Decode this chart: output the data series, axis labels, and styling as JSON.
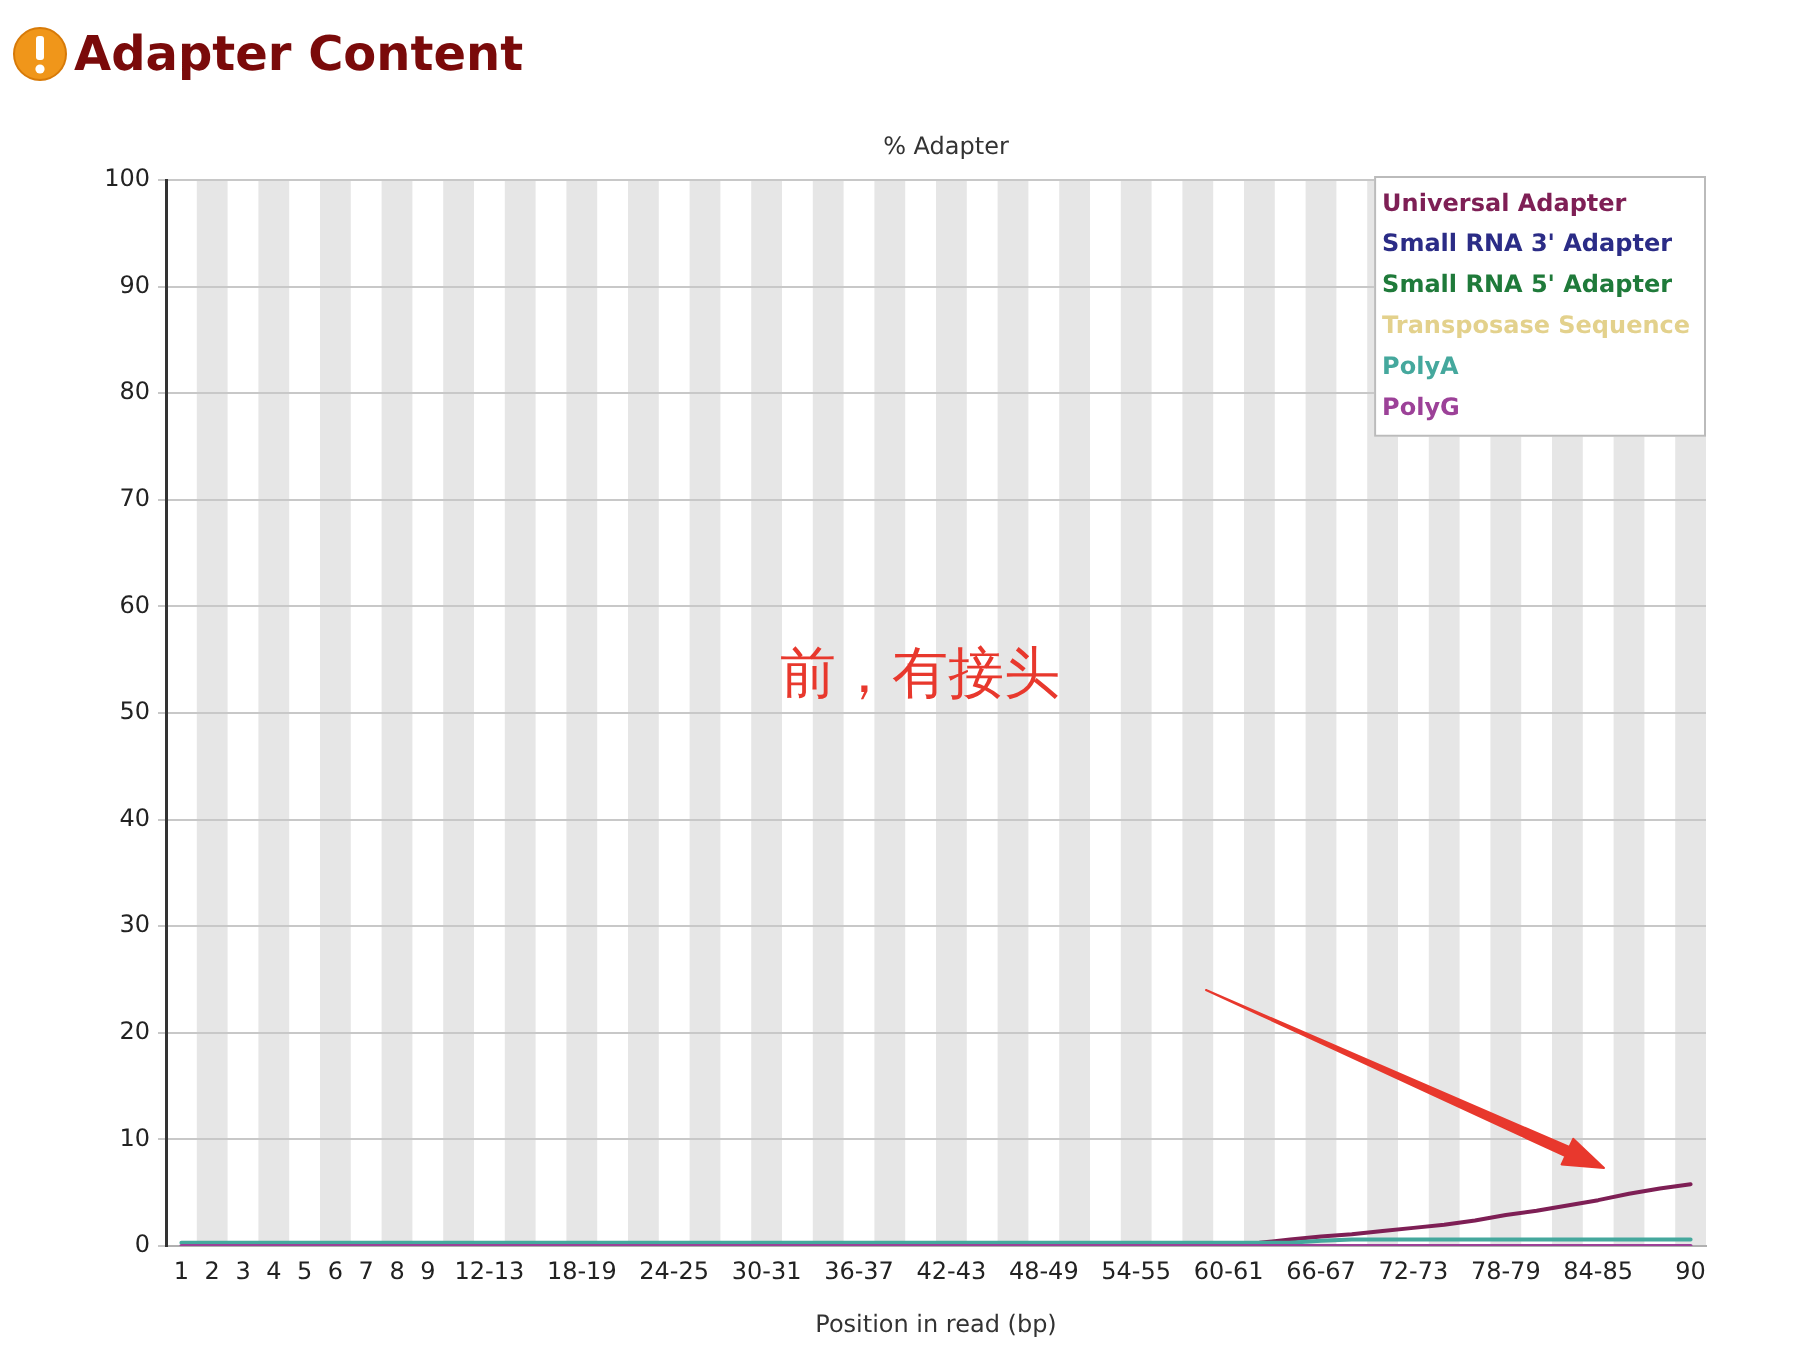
{
  "chart_data": {
    "type": "line",
    "title": "Adapter Content",
    "subtitle": "% Adapter",
    "xlabel": "Position in read (bp)",
    "categories": [
      "1",
      "2",
      "3",
      "4",
      "5",
      "6",
      "7",
      "8",
      "9",
      null,
      "12-13",
      null,
      null,
      "18-19",
      null,
      null,
      "24-25",
      null,
      null,
      "30-31",
      null,
      null,
      "36-37",
      null,
      null,
      "42-43",
      null,
      null,
      "48-49",
      null,
      null,
      "54-55",
      null,
      null,
      "60-61",
      null,
      null,
      "66-67",
      null,
      null,
      "72-73",
      null,
      null,
      "78-79",
      null,
      null,
      "84-85",
      null,
      null,
      "90"
    ],
    "series": [
      {
        "name": "Universal Adapter",
        "color": "#7e1f55",
        "values": [
          null,
          null,
          null,
          null,
          null,
          null,
          null,
          null,
          null,
          null,
          null,
          null,
          null,
          null,
          null,
          null,
          null,
          null,
          null,
          null,
          null,
          null,
          null,
          null,
          null,
          null,
          null,
          null,
          null,
          null,
          null,
          null,
          null,
          null,
          0.1,
          0.3,
          0.6,
          0.9,
          1.1,
          1.4,
          1.7,
          2.0,
          2.4,
          2.9,
          3.3,
          3.8,
          4.3,
          4.9,
          5.4,
          5.8
        ]
      },
      {
        "name": "Small RNA 3' Adapter",
        "color": "#2b2c86",
        "values": [
          null,
          null,
          null,
          null,
          null,
          null,
          null,
          null,
          null,
          null,
          null,
          null,
          null,
          null,
          null,
          null,
          null,
          null,
          null,
          null,
          null,
          null,
          null,
          null,
          null,
          null,
          null,
          null,
          null,
          null,
          null,
          null,
          null,
          null,
          null,
          null,
          null,
          null,
          null,
          null,
          null,
          null,
          null,
          null,
          null,
          null,
          null,
          null,
          null,
          null
        ]
      },
      {
        "name": "Small RNA 5' Adapter",
        "color": "#1f7a3a",
        "values": [
          null,
          null,
          null,
          null,
          null,
          null,
          null,
          null,
          null,
          null,
          null,
          null,
          null,
          null,
          null,
          null,
          null,
          null,
          null,
          null,
          null,
          null,
          null,
          null,
          null,
          null,
          null,
          null,
          null,
          null,
          null,
          null,
          null,
          null,
          null,
          null,
          null,
          null,
          null,
          null,
          null,
          null,
          null,
          null,
          null,
          null,
          null,
          null,
          null,
          null
        ]
      },
      {
        "name": "Transposase Sequence",
        "color": "#e3d18c",
        "values": [
          null,
          null,
          null,
          null,
          null,
          null,
          null,
          null,
          null,
          null,
          null,
          null,
          null,
          null,
          null,
          null,
          null,
          null,
          null,
          null,
          null,
          null,
          null,
          null,
          null,
          null,
          null,
          null,
          null,
          null,
          null,
          null,
          null,
          null,
          null,
          null,
          null,
          null,
          null,
          null,
          null,
          null,
          null,
          null,
          null,
          null,
          null,
          null,
          null,
          null
        ]
      },
      {
        "name": "PolyA",
        "color": "#45a89d",
        "values": [
          0.3,
          0.3,
          0.3,
          0.3,
          0.3,
          0.3,
          0.3,
          0.3,
          0.3,
          0.3,
          0.3,
          0.3,
          0.3,
          0.3,
          0.3,
          0.3,
          0.3,
          0.3,
          0.3,
          0.3,
          0.3,
          0.3,
          0.3,
          0.3,
          0.3,
          0.3,
          0.3,
          0.3,
          0.3,
          0.3,
          0.3,
          0.3,
          0.3,
          0.3,
          0.3,
          0.3,
          0.3,
          0.5,
          0.6,
          0.6,
          0.6,
          0.6,
          0.6,
          0.6,
          0.6,
          0.6,
          0.6,
          0.6,
          0.6,
          0.6
        ]
      },
      {
        "name": "PolyG",
        "color": "#9c4198",
        "values": [
          0,
          0,
          0,
          0,
          0,
          0,
          0,
          0,
          0,
          0,
          0,
          0,
          0,
          0,
          0,
          0,
          0,
          0,
          0,
          0,
          0,
          0,
          0,
          0,
          0,
          0,
          0,
          0,
          0,
          0,
          0,
          0,
          0,
          0,
          0,
          0,
          0,
          0,
          0,
          0,
          0,
          0,
          0,
          0,
          0,
          0,
          0,
          0,
          0,
          0
        ]
      }
    ],
    "ylim": [
      0,
      100
    ],
    "yticks": [
      0,
      10,
      20,
      30,
      40,
      50,
      60,
      70,
      80,
      90,
      100
    ],
    "grid": "y",
    "legend": "top right",
    "marker": "none",
    "line_style": "solid",
    "annotations": [
      "前，有接头"
    ]
  }
}
